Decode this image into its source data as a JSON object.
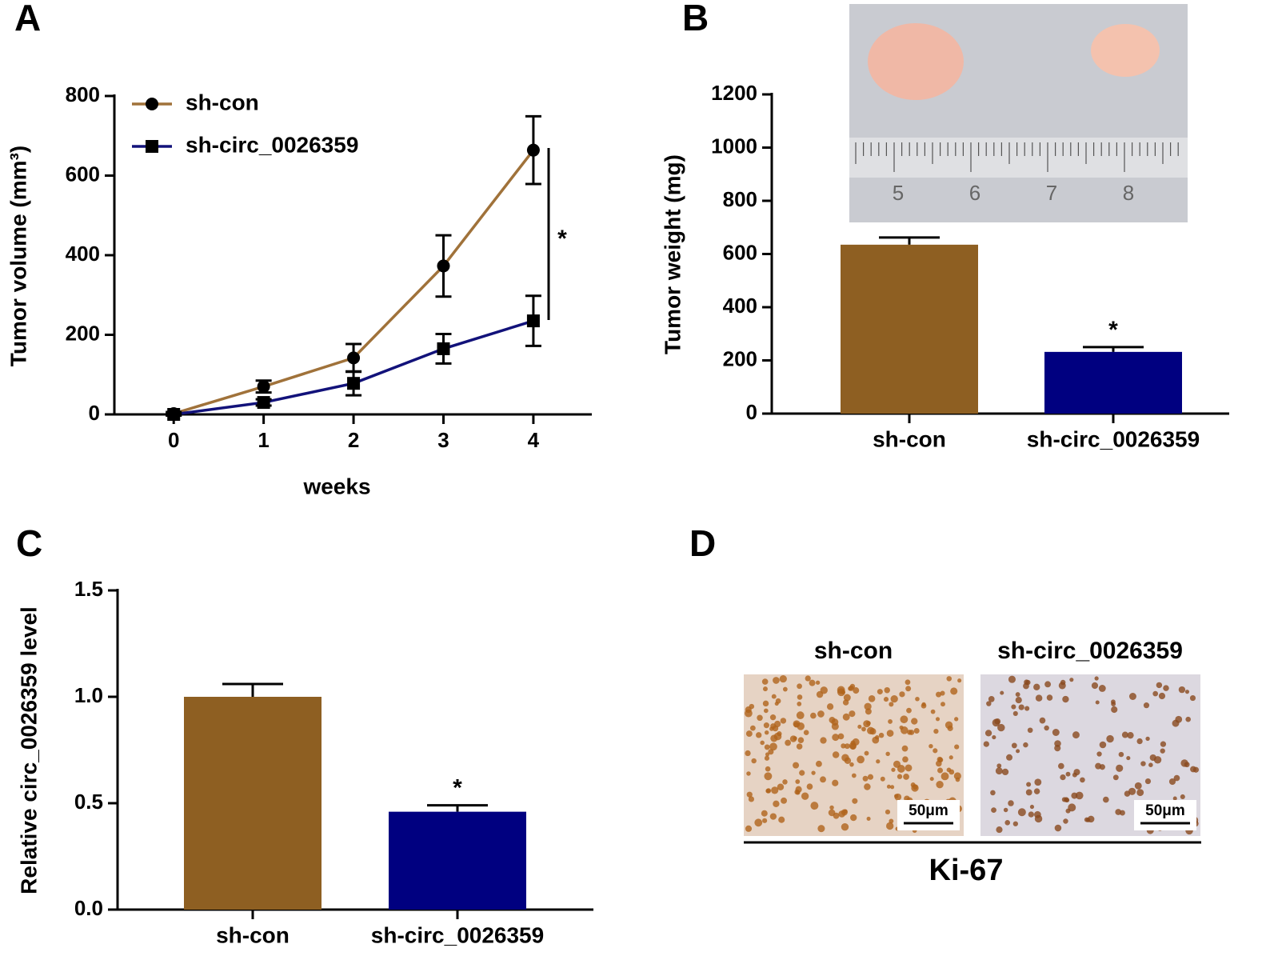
{
  "chart_data": [
    {
      "panel": "A",
      "type": "line",
      "x_label": "weeks",
      "y_label": "Tumor volume (mm³)",
      "x": [
        0,
        1,
        2,
        3,
        4
      ],
      "xlim": [
        -0.66,
        4.65
      ],
      "xticks": [
        0,
        1,
        2,
        3,
        4
      ],
      "ylim": [
        0,
        800
      ],
      "yticks": [
        0,
        200,
        400,
        600,
        800
      ],
      "series": [
        {
          "name": "sh-con",
          "color": "#a0723a",
          "marker": "circle",
          "values": [
            2,
            70,
            142,
            373,
            664
          ],
          "errors": [
            4,
            15,
            35,
            77,
            85
          ]
        },
        {
          "name": "sh-circ_0026359",
          "color": "#12127a",
          "marker": "square",
          "values": [
            0,
            30,
            78,
            165,
            235
          ],
          "errors": [
            3,
            8,
            30,
            37,
            63
          ]
        }
      ],
      "annotation": "*"
    },
    {
      "panel": "B",
      "type": "bar",
      "y_label": "Tumor weight (mg)",
      "categories": [
        "sh-con",
        "sh-circ_0026359"
      ],
      "values": [
        635,
        232
      ],
      "errors": [
        27,
        18
      ],
      "colors": [
        "#8e5f22",
        "#000080"
      ],
      "ylim": [
        0,
        1200
      ],
      "yticks": [
        0,
        200,
        400,
        600,
        800,
        1000,
        1200
      ],
      "annotation": "*",
      "photo_labels": [
        "5",
        "6",
        "7",
        "8"
      ]
    },
    {
      "panel": "C",
      "type": "bar",
      "y_label": "Relative circ_0026359 level",
      "categories": [
        "sh-con",
        "sh-circ_0026359"
      ],
      "values": [
        1.0,
        0.46
      ],
      "errors": [
        0.06,
        0.03
      ],
      "colors": [
        "#8e5f22",
        "#000080"
      ],
      "ylim": [
        0,
        1.5
      ],
      "yticks": [
        {
          "value": 0,
          "label": "0.0"
        },
        0.5,
        {
          "value": 1,
          "label": "1.0"
        },
        1.5
      ],
      "annotation": "*"
    }
  ],
  "image_panel": {
    "panel": "D",
    "labels": [
      "sh-con",
      "sh-circ_0026359"
    ],
    "scale_bar": "50μm",
    "caption": "Ki-67"
  }
}
